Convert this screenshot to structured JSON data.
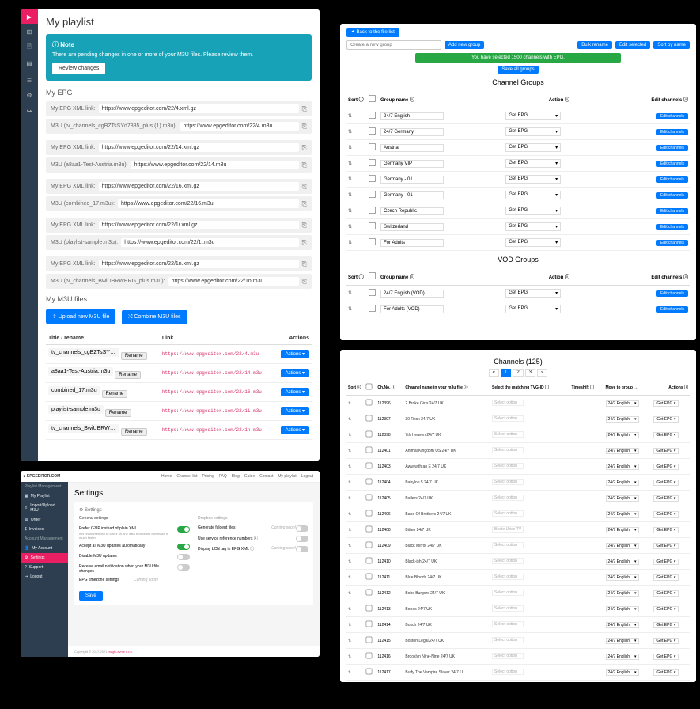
{
  "colors": {
    "primary": "#007bff",
    "accent": "#e91e63",
    "success": "#28a745",
    "info": "#17a2b8",
    "dark": "#2c3e50"
  },
  "p1": {
    "title": "My playlist",
    "note": {
      "title": "ⓘ Note",
      "body": "There are pending changes in one or more of your M3U files. Please review them.",
      "btn": "Review changes"
    },
    "epg_h": "My EPG",
    "epg_groups": [
      {
        "rows": [
          {
            "lbl": "My EPG XML link:",
            "val": "https://www.epgeditor.com/22/4.xml.gz"
          },
          {
            "lbl": "M3U (tv_channels_cgBZTsSYd7885_plus (1).m3u):",
            "val": "https://www.epgeditor.com/22/4.m3u"
          }
        ]
      },
      {
        "rows": [
          {
            "lbl": "My EPG XML link:",
            "val": "https://www.epgeditor.com/22/14.xml.gz"
          },
          {
            "lbl": "M3U (a8aa1-Test-Austria.m3u):",
            "val": "https://www.epgeditor.com/22/14.m3u"
          }
        ]
      },
      {
        "rows": [
          {
            "lbl": "My EPG XML link:",
            "val": "https://www.epgeditor.com/22/16.xml.gz"
          },
          {
            "lbl": "M3U (combined_17.m3u):",
            "val": "https://www.epgeditor.com/22/16.m3u"
          }
        ]
      },
      {
        "rows": [
          {
            "lbl": "My EPG XML link:",
            "val": "https://www.epgeditor.com/22/1i.xml.gz"
          },
          {
            "lbl": "M3U (playlist-sample.m3u):",
            "val": "https://www.epgeditor.com/22/1i.m3u"
          }
        ]
      },
      {
        "rows": [
          {
            "lbl": "My EPG XML link:",
            "val": "https://www.epgeditor.com/22/1n.xml.gz"
          },
          {
            "lbl": "M3U (tv_channels_BwiUBRWERG_plus.m3u):",
            "val": "https://www.epgeditor.com/22/1n.m3u"
          }
        ]
      }
    ],
    "files_h": "My M3U files",
    "upload": "⇧ Upload new M3U file",
    "combine": "⤮ Combine M3U files",
    "cols": {
      "title": "Title / rename",
      "link": "Link",
      "actions": "Actions"
    },
    "rename": "Rename",
    "action": "Actions ▾",
    "files": [
      {
        "name": "tv_channels_cgBZTsSYd7885_plus",
        "link": "https://www.epgeditor.com/22/4.m3u"
      },
      {
        "name": "a8aa1-Test-Austria.m3u",
        "link": "https://www.epgeditor.com/22/14.m3u"
      },
      {
        "name": "combined_17.m3u",
        "link": "https://www.epgeditor.com/22/16.m3u"
      },
      {
        "name": "playlist-sample.m3u",
        "link": "https://www.epgeditor.com/22/1i.m3u"
      },
      {
        "name": "tv_channels_BwiUBRWERG_plus.m",
        "link": "https://www.epgeditor.com/22/1n.m3u"
      }
    ]
  },
  "p2": {
    "back": "⯇ Back to the file list",
    "placeholder": "Create a new group",
    "add": "Add new group",
    "bulk": "Bulk rename",
    "editsel": "Edit selected",
    "sort": "Sort by name",
    "green": "You have selected 1500 channels with EPG.",
    "saveall": "Save all groups",
    "h1": "Channel Groups",
    "h2": "VOD Groups",
    "cols": {
      "sort": "Sort ⓘ",
      "name": "Group name ⓘ",
      "action": "Action ⓘ",
      "edit": "Edit channels ⓘ"
    },
    "getepg": "Get EPG",
    "editch": "Edit channels",
    "groups": [
      "24/7 English",
      "24/7 Germany",
      "Austria",
      "Germany VIP",
      "Germany - 01",
      "Germany - 01",
      "Czech Republic",
      "Switzerland",
      "For Adults"
    ],
    "vod": [
      "24/7 English (VOD)",
      "For Adults (VOD)"
    ]
  },
  "p3": {
    "brand": "▸ EPGEDITOR.COM",
    "nav": [
      "Home",
      "Channel list",
      "Pricing",
      "FAQ",
      "Blog",
      "Guide",
      "Contact",
      "My playlist",
      "Logout"
    ],
    "grp1": "Playlist Management",
    "grp2": "Account Management",
    "menu1": [
      {
        "ic": "▦",
        "t": "My Playlist"
      },
      {
        "ic": "⇧",
        "t": "Import/Upload M3U"
      },
      {
        "ic": "▤",
        "t": "Order"
      },
      {
        "ic": "$",
        "t": "Invoices"
      }
    ],
    "menu2": [
      {
        "ic": "👤",
        "t": "My Account"
      },
      {
        "ic": "⚙",
        "t": "Settings"
      },
      {
        "ic": "?",
        "t": "Support"
      },
      {
        "ic": "↪",
        "t": "Logout"
      }
    ],
    "title": "Settings",
    "cardh": "⚙ Settings",
    "tabs": [
      "General settings",
      "Dropbox settings"
    ],
    "left": [
      {
        "t": "Prefer GZIP instead of plain XML",
        "s": "It is recommended to turn it on. the data reductions can make it much faster",
        "on": true
      },
      {
        "t": "Accept all M3U updates automatically",
        "s": "",
        "on": true
      },
      {
        "t": "Disable M3U updates",
        "s": "",
        "on": false
      },
      {
        "t": "Receive email notification when your M3U file changes",
        "s": "",
        "on": false
      }
    ],
    "right": [
      {
        "t": "Generate fulgent files",
        "soon": "Coming soon!"
      },
      {
        "t": "Use service reference numbers ⓘ"
      },
      {
        "t": "Display LCN tag in EPG XML ⓘ",
        "soon": "Coming soon!"
      }
    ],
    "tz": {
      "lbl": "EPG timezone settings",
      "soon": "Coming soon!"
    },
    "save": "Save",
    "foot": "Copyright © 2017-2021 ",
    "foota": "magic.avnie s.r.o."
  },
  "p4": {
    "title": "Channels (125)",
    "pages": [
      "«",
      "1",
      "2",
      "3",
      "»"
    ],
    "cur": 1,
    "cols": {
      "sort": "Sort ⓘ",
      "chno": "Ch.No. ⓘ",
      "name": "Channel name in your m3u file ⓘ",
      "tvg": "Select the matching TVG-ID ⓘ",
      "ts": "Timeshift ⓘ",
      "move": "Move to group →",
      "act": "Actions ⓘ"
    },
    "select": "Select option",
    "grp": "24/7 English",
    "getepg": "Get EPG",
    "rows": [
      {
        "no": "112396",
        "nm": "2 Broke Girls 24/7 UK"
      },
      {
        "no": "112397",
        "nm": "30 Rock 24/7 UK"
      },
      {
        "no": "112398",
        "nm": "7th Heaven 24/7 UK"
      },
      {
        "no": "112401",
        "nm": "Animal Kingdom US 24/7 UK"
      },
      {
        "no": "112403",
        "nm": "Aww with an E 24/7 UK"
      },
      {
        "no": "112404",
        "nm": "Babylon 5 24/7 UK"
      },
      {
        "no": "112405",
        "nm": "Ballers 24/7 UK"
      },
      {
        "no": "112406",
        "nm": "Band Of Brothers 24/7 UK"
      },
      {
        "no": "112408",
        "nm": "Bitten 24/7 UK",
        "tvg": "Beate-Uhse TV"
      },
      {
        "no": "112409",
        "nm": "Black Mirror 24/7 UK"
      },
      {
        "no": "112410",
        "nm": "Black-ish 24/7 UK"
      },
      {
        "no": "112411",
        "nm": "Blue Bloods 24/7 UK"
      },
      {
        "no": "112412",
        "nm": "Bobs Burgers 24/7 UK"
      },
      {
        "no": "112413",
        "nm": "Bones 24/7 UK"
      },
      {
        "no": "112414",
        "nm": "Bosch 24/7 UK"
      },
      {
        "no": "112415",
        "nm": "Boston Legal 24/7 UK"
      },
      {
        "no": "112416",
        "nm": "Brooklyn Nine-Nine 24/7 UK"
      },
      {
        "no": "112417",
        "nm": "Buffy The Vampire Slayer 24/7 U"
      }
    ]
  }
}
